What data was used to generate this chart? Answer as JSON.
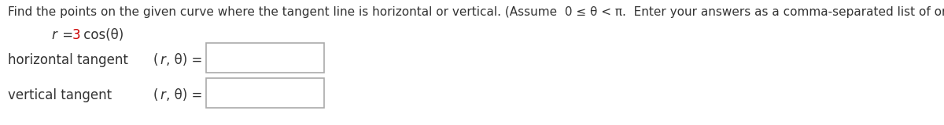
{
  "background_color": "#ffffff",
  "main_text": "Find the points on the given curve where the tangent line is horizontal or vertical. (Assume  0 ≤ θ < π.  Enter your answers as a comma-separated list of ordered pairs.)",
  "eq_r": "r",
  "eq_equals": " = ",
  "equation_number": "3",
  "equation_suffix": " cos(θ)",
  "equation_number_color": "#cc0000",
  "text_color": "#333333",
  "label1": "horizontal tangent",
  "label2": "vertical tangent",
  "pair_label": "(r, θ) =",
  "main_text_fontsize": 11.0,
  "equation_fontsize": 12.0,
  "label_fontsize": 12.0,
  "pair_fontsize": 12.0,
  "fig_width": 12.0,
  "fig_height": 1.6,
  "dpi": 100
}
